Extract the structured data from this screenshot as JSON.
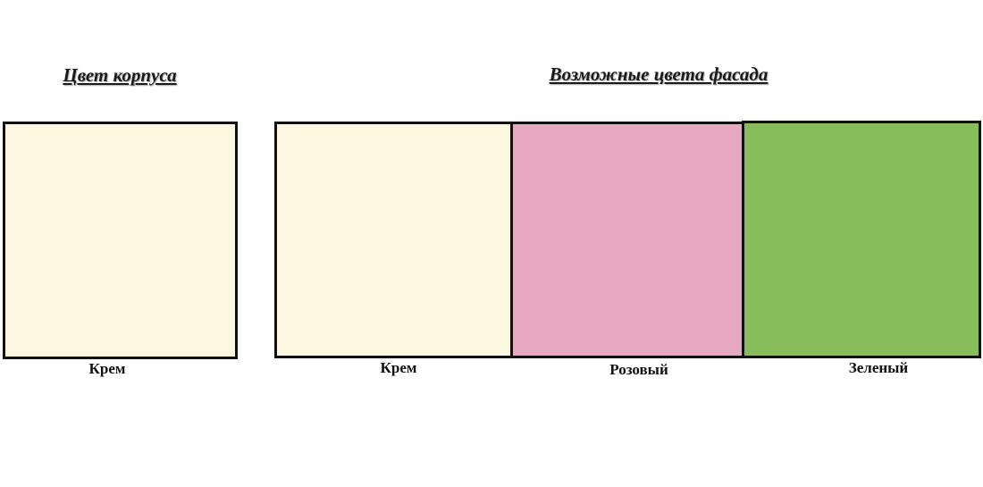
{
  "body_section": {
    "title": "Цвет корпуса",
    "swatch": {
      "label": "Крем",
      "color": "#FEF8E0"
    }
  },
  "facade_section": {
    "title": "Возможные цвета фасада",
    "swatches": [
      {
        "label": "Крем",
        "color": "#FEF8E0"
      },
      {
        "label": "Розовый",
        "color": "#E7A9C0"
      },
      {
        "label": "Зеленый",
        "color": "#87BD5B"
      }
    ]
  }
}
